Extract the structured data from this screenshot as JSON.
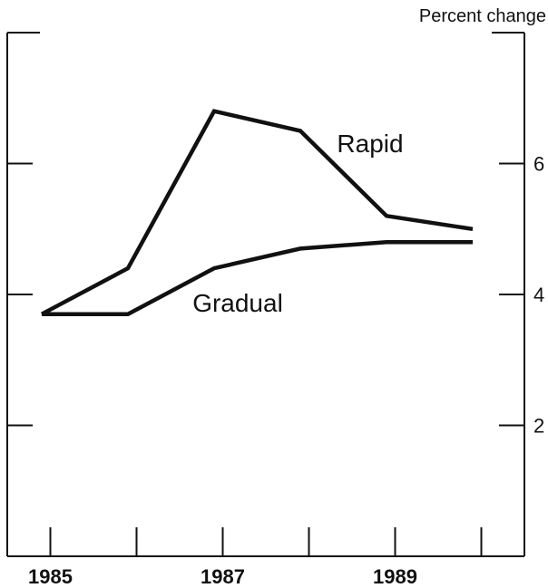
{
  "chart_data": {
    "type": "line",
    "unit_label": "Percent change",
    "x_ticks": [
      1985,
      1986,
      1987,
      1988,
      1989,
      1990
    ],
    "x_tick_labels": [
      "1985",
      "1987",
      "1989"
    ],
    "xlim": [
      1984.5,
      1990.5
    ],
    "y_ticks": [
      2,
      4,
      6
    ],
    "ylim": [
      0,
      8
    ],
    "grid": false,
    "series": [
      {
        "name": "Rapid",
        "points": [
          [
            1984.9,
            3.7
          ],
          [
            1985.9,
            4.4
          ],
          [
            1986.9,
            6.8
          ],
          [
            1987.9,
            6.5
          ],
          [
            1988.9,
            5.2
          ],
          [
            1989.9,
            5.0
          ]
        ]
      },
      {
        "name": "Gradual",
        "points": [
          [
            1984.9,
            3.7
          ],
          [
            1985.9,
            3.7
          ],
          [
            1986.9,
            4.4
          ],
          [
            1987.9,
            4.7
          ],
          [
            1988.9,
            4.8
          ],
          [
            1989.9,
            4.8
          ]
        ]
      }
    ]
  }
}
